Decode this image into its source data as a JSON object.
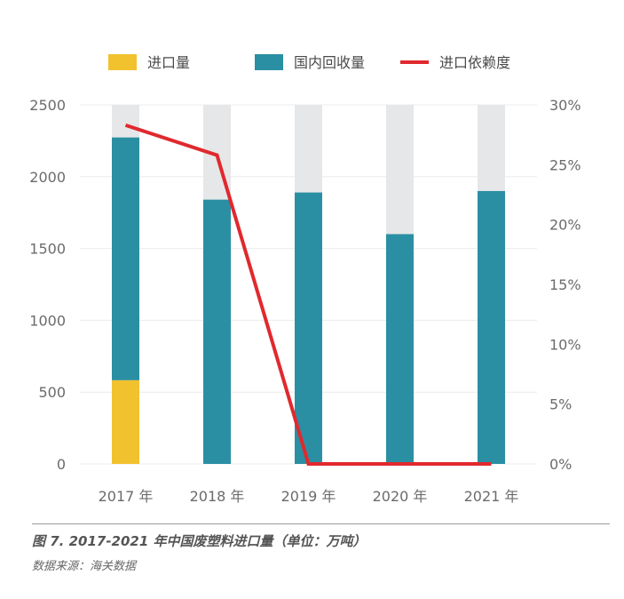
{
  "chart_data": {
    "type": "bar",
    "title": "",
    "categories": [
      "2017 年",
      "2018 年",
      "2019 年",
      "2020 年",
      "2021 年"
    ],
    "series": [
      {
        "name": "进口量",
        "type": "bar",
        "axis": "left",
        "color": "#F2C12E",
        "values": [
          583,
          0,
          0,
          0,
          0
        ]
      },
      {
        "name": "国内回收量",
        "type": "bar",
        "axis": "left",
        "color": "#2A8FA3",
        "values": [
          1690,
          1840,
          1890,
          1600,
          1900
        ]
      },
      {
        "name": "进口依赖度",
        "type": "line",
        "axis": "right",
        "color": "#E0292E",
        "values": [
          28.3,
          25.8,
          0,
          0,
          0
        ]
      }
    ],
    "background_bar_color": "#E6E7E8",
    "y_left": {
      "min": 0,
      "max": 2500,
      "ticks": [
        "0",
        "500",
        "1000",
        "1500",
        "2000",
        "2500"
      ]
    },
    "y_right": {
      "min": 0,
      "max": 30,
      "ticks": [
        "0%",
        "5%",
        "10%",
        "15%",
        "20%",
        "25%",
        "30%"
      ]
    },
    "grid": true,
    "legend_position": "top-center"
  },
  "caption": "图 7. 2017-2021 年中国废塑料进口量（单位：万吨）",
  "source": "数据来源：海关数据"
}
